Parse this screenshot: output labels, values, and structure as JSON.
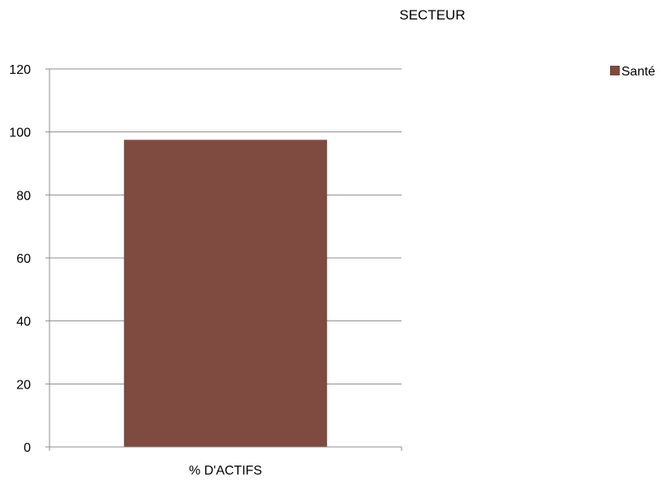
{
  "chart_data": {
    "type": "bar",
    "title": "SECTEUR",
    "categories": [
      "% D'ACTIFS"
    ],
    "series": [
      {
        "name": "Santé",
        "values": [
          97.5
        ],
        "color": "#7f4a40"
      }
    ],
    "xlabel": "",
    "ylabel": "",
    "ylim": [
      0,
      120
    ],
    "yticks": [
      0,
      20,
      40,
      60,
      80,
      100,
      120
    ],
    "grid": true,
    "legend": "right",
    "colors": {
      "grid": "#8c8c8c",
      "axis": "#8c8c8c"
    }
  }
}
